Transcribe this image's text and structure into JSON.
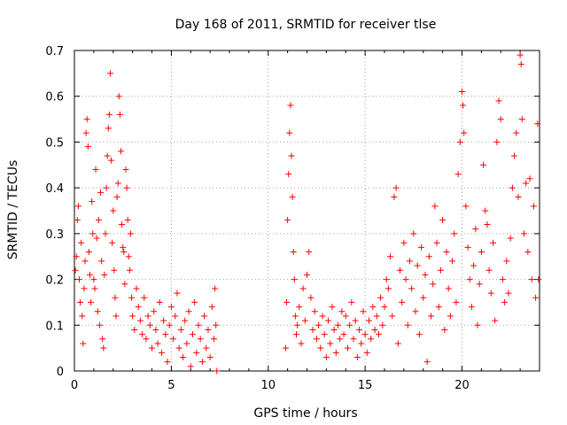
{
  "chart_data": {
    "type": "scatter",
    "title": "Day 168 of 2011, SRMTID for receiver tlse",
    "xlabel": "GPS time / hours",
    "ylabel": "SRMTID / TECUs",
    "xlim": [
      0,
      24
    ],
    "ylim": [
      0,
      0.7
    ],
    "xticks": [
      0,
      5,
      10,
      15,
      20
    ],
    "yticks": [
      0,
      0.1,
      0.2,
      0.3,
      0.4,
      0.5,
      0.6,
      0.7
    ],
    "ytick_labels": [
      "0",
      "0.1",
      "0.2",
      "0.3",
      "0.4",
      "0.5",
      "0.6",
      "0.7"
    ],
    "grid": true,
    "marker": "+",
    "series": [
      {
        "name": "SRMTID",
        "color": "#ff0000",
        "points": [
          [
            0.05,
            0.22
          ],
          [
            0.1,
            0.25
          ],
          [
            0.15,
            0.33
          ],
          [
            0.2,
            0.36
          ],
          [
            0.25,
            0.2
          ],
          [
            0.3,
            0.15
          ],
          [
            0.35,
            0.28
          ],
          [
            0.4,
            0.12
          ],
          [
            0.45,
            0.06
          ],
          [
            0.5,
            0.18
          ],
          [
            0.55,
            0.24
          ],
          [
            0.6,
            0.52
          ],
          [
            0.65,
            0.55
          ],
          [
            0.7,
            0.49
          ],
          [
            0.75,
            0.26
          ],
          [
            0.8,
            0.21
          ],
          [
            0.85,
            0.15
          ],
          [
            0.9,
            0.37
          ],
          [
            0.95,
            0.3
          ],
          [
            1.0,
            0.2
          ],
          [
            1.05,
            0.18
          ],
          [
            1.1,
            0.44
          ],
          [
            1.15,
            0.29
          ],
          [
            1.2,
            0.13
          ],
          [
            1.25,
            0.33
          ],
          [
            1.3,
            0.1
          ],
          [
            1.35,
            0.39
          ],
          [
            1.4,
            0.24
          ],
          [
            1.45,
            0.07
          ],
          [
            1.5,
            0.05
          ],
          [
            1.55,
            0.21
          ],
          [
            1.6,
            0.3
          ],
          [
            1.65,
            0.4
          ],
          [
            1.7,
            0.47
          ],
          [
            1.75,
            0.53
          ],
          [
            1.8,
            0.56
          ],
          [
            1.85,
            0.65
          ],
          [
            1.9,
            0.46
          ],
          [
            1.95,
            0.28
          ],
          [
            2.0,
            0.35
          ],
          [
            2.05,
            0.22
          ],
          [
            2.1,
            0.16
          ],
          [
            2.15,
            0.12
          ],
          [
            2.2,
            0.38
          ],
          [
            2.25,
            0.41
          ],
          [
            2.3,
            0.6
          ],
          [
            2.35,
            0.56
          ],
          [
            2.4,
            0.48
          ],
          [
            2.45,
            0.32
          ],
          [
            2.5,
            0.27
          ],
          [
            2.55,
            0.26
          ],
          [
            2.6,
            0.19
          ],
          [
            2.65,
            0.44
          ],
          [
            2.7,
            0.4
          ],
          [
            2.75,
            0.33
          ],
          [
            2.8,
            0.25
          ],
          [
            2.85,
            0.22
          ],
          [
            2.9,
            0.3
          ],
          [
            2.95,
            0.16
          ],
          [
            3.0,
            0.12
          ],
          [
            3.1,
            0.09
          ],
          [
            3.2,
            0.18
          ],
          [
            3.3,
            0.14
          ],
          [
            3.4,
            0.11
          ],
          [
            3.5,
            0.08
          ],
          [
            3.6,
            0.16
          ],
          [
            3.7,
            0.07
          ],
          [
            3.8,
            0.12
          ],
          [
            3.9,
            0.1
          ],
          [
            4.0,
            0.05
          ],
          [
            4.1,
            0.13
          ],
          [
            4.2,
            0.09
          ],
          [
            4.3,
            0.06
          ],
          [
            4.4,
            0.15
          ],
          [
            4.5,
            0.04
          ],
          [
            4.6,
            0.11
          ],
          [
            4.7,
            0.08
          ],
          [
            4.8,
            0.02
          ],
          [
            4.9,
            0.1
          ],
          [
            5.0,
            0.14
          ],
          [
            5.1,
            0.07
          ],
          [
            5.2,
            0.12
          ],
          [
            5.3,
            0.17
          ],
          [
            5.4,
            0.05
          ],
          [
            5.5,
            0.09
          ],
          [
            5.6,
            0.03
          ],
          [
            5.7,
            0.11
          ],
          [
            5.8,
            0.06
          ],
          [
            5.9,
            0.13
          ],
          [
            6.0,
            0.01
          ],
          [
            6.1,
            0.08
          ],
          [
            6.2,
            0.15
          ],
          [
            6.3,
            0.04
          ],
          [
            6.4,
            0.1
          ],
          [
            6.5,
            0.07
          ],
          [
            6.6,
            0.02
          ],
          [
            6.7,
            0.12
          ],
          [
            6.8,
            0.05
          ],
          [
            6.9,
            0.09
          ],
          [
            7.0,
            0.03
          ],
          [
            7.1,
            0.14
          ],
          [
            7.2,
            0.07
          ],
          [
            7.25,
            0.18
          ],
          [
            7.3,
            0.1
          ],
          [
            7.35,
            0.0
          ],
          [
            10.9,
            0.05
          ],
          [
            10.95,
            0.15
          ],
          [
            11.0,
            0.33
          ],
          [
            11.05,
            0.43
          ],
          [
            11.1,
            0.52
          ],
          [
            11.15,
            0.58
          ],
          [
            11.2,
            0.47
          ],
          [
            11.25,
            0.38
          ],
          [
            11.3,
            0.26
          ],
          [
            11.35,
            0.2
          ],
          [
            11.4,
            0.12
          ],
          [
            11.45,
            0.08
          ],
          [
            11.5,
            0.1
          ],
          [
            11.6,
            0.14
          ],
          [
            11.7,
            0.06
          ],
          [
            11.8,
            0.18
          ],
          [
            11.9,
            0.11
          ],
          [
            12.0,
            0.21
          ],
          [
            12.1,
            0.26
          ],
          [
            12.2,
            0.16
          ],
          [
            12.3,
            0.09
          ],
          [
            12.4,
            0.13
          ],
          [
            12.5,
            0.07
          ],
          [
            12.6,
            0.1
          ],
          [
            12.7,
            0.05
          ],
          [
            12.8,
            0.12
          ],
          [
            12.9,
            0.08
          ],
          [
            13.0,
            0.03
          ],
          [
            13.1,
            0.11
          ],
          [
            13.2,
            0.06
          ],
          [
            13.3,
            0.14
          ],
          [
            13.4,
            0.09
          ],
          [
            13.5,
            0.04
          ],
          [
            13.6,
            0.1
          ],
          [
            13.7,
            0.07
          ],
          [
            13.8,
            0.13
          ],
          [
            13.9,
            0.08
          ],
          [
            14.0,
            0.12
          ],
          [
            14.1,
            0.05
          ],
          [
            14.2,
            0.1
          ],
          [
            14.3,
            0.15
          ],
          [
            14.4,
            0.07
          ],
          [
            14.5,
            0.11
          ],
          [
            14.6,
            0.03
          ],
          [
            14.7,
            0.09
          ],
          [
            14.8,
            0.06
          ],
          [
            14.9,
            0.13
          ],
          [
            15.0,
            0.08
          ],
          [
            15.1,
            0.04
          ],
          [
            15.2,
            0.11
          ],
          [
            15.3,
            0.07
          ],
          [
            15.4,
            0.14
          ],
          [
            15.5,
            0.09
          ],
          [
            15.6,
            0.12
          ],
          [
            15.7,
            0.08
          ],
          [
            15.8,
            0.16
          ],
          [
            15.9,
            0.1
          ],
          [
            16.0,
            0.14
          ],
          [
            16.1,
            0.2
          ],
          [
            16.2,
            0.18
          ],
          [
            16.3,
            0.25
          ],
          [
            16.4,
            0.12
          ],
          [
            16.5,
            0.38
          ],
          [
            16.6,
            0.4
          ],
          [
            16.7,
            0.06
          ],
          [
            16.8,
            0.22
          ],
          [
            16.9,
            0.15
          ],
          [
            17.0,
            0.28
          ],
          [
            17.1,
            0.2
          ],
          [
            17.2,
            0.1
          ],
          [
            17.3,
            0.24
          ],
          [
            17.4,
            0.18
          ],
          [
            17.5,
            0.3
          ],
          [
            17.6,
            0.13
          ],
          [
            17.7,
            0.23
          ],
          [
            17.8,
            0.08
          ],
          [
            17.9,
            0.27
          ],
          [
            18.0,
            0.16
          ],
          [
            18.1,
            0.21
          ],
          [
            18.2,
            0.02
          ],
          [
            18.3,
            0.25
          ],
          [
            18.4,
            0.12
          ],
          [
            18.5,
            0.19
          ],
          [
            18.6,
            0.36
          ],
          [
            18.7,
            0.28
          ],
          [
            18.8,
            0.14
          ],
          [
            18.9,
            0.22
          ],
          [
            19.0,
            0.33
          ],
          [
            19.1,
            0.09
          ],
          [
            19.2,
            0.26
          ],
          [
            19.3,
            0.18
          ],
          [
            19.4,
            0.12
          ],
          [
            19.5,
            0.24
          ],
          [
            19.6,
            0.3
          ],
          [
            19.7,
            0.15
          ],
          [
            19.8,
            0.43
          ],
          [
            19.9,
            0.5
          ],
          [
            20.0,
            0.61
          ],
          [
            20.05,
            0.58
          ],
          [
            20.1,
            0.52
          ],
          [
            20.2,
            0.36
          ],
          [
            20.3,
            0.27
          ],
          [
            20.4,
            0.2
          ],
          [
            20.5,
            0.14
          ],
          [
            20.6,
            0.23
          ],
          [
            20.7,
            0.31
          ],
          [
            20.8,
            0.1
          ],
          [
            20.9,
            0.19
          ],
          [
            21.0,
            0.26
          ],
          [
            21.1,
            0.45
          ],
          [
            21.2,
            0.35
          ],
          [
            21.3,
            0.32
          ],
          [
            21.4,
            0.22
          ],
          [
            21.5,
            0.17
          ],
          [
            21.6,
            0.28
          ],
          [
            21.7,
            0.11
          ],
          [
            21.8,
            0.5
          ],
          [
            21.9,
            0.59
          ],
          [
            22.0,
            0.55
          ],
          [
            22.1,
            0.2
          ],
          [
            22.2,
            0.15
          ],
          [
            22.3,
            0.24
          ],
          [
            22.4,
            0.17
          ],
          [
            22.5,
            0.29
          ],
          [
            22.6,
            0.4
          ],
          [
            22.7,
            0.47
          ],
          [
            22.8,
            0.52
          ],
          [
            22.9,
            0.38
          ],
          [
            23.0,
            0.69
          ],
          [
            23.05,
            0.67
          ],
          [
            23.1,
            0.55
          ],
          [
            23.2,
            0.3
          ],
          [
            23.3,
            0.41
          ],
          [
            23.4,
            0.26
          ],
          [
            23.5,
            0.42
          ],
          [
            23.6,
            0.2
          ],
          [
            23.7,
            0.36
          ],
          [
            23.8,
            0.16
          ],
          [
            23.9,
            0.54
          ],
          [
            23.95,
            0.2
          ]
        ]
      }
    ]
  }
}
